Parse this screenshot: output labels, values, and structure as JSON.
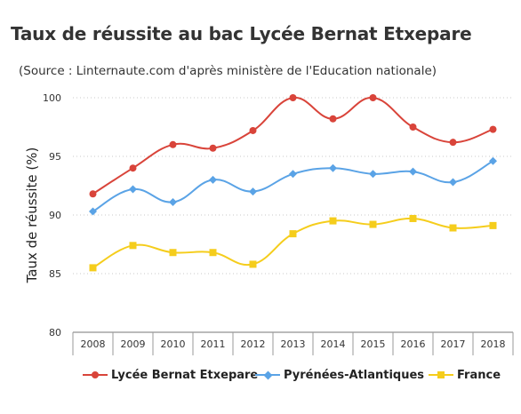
{
  "header": {
    "title": "Taux de réussite au bac Lycée Bernat Etxepare",
    "subtitle": "(Source : Linternaute.com d'après ministère de l'Education nationale)"
  },
  "chart_data": {
    "type": "line",
    "title": "Taux de réussite au bac Lycée Bernat Etxepare",
    "subtitle": "(Source : Linternaute.com d'après ministère de l'Education nationale)",
    "xlabel": "",
    "ylabel": "Taux de réussite (%)",
    "categories": [
      "2008",
      "2009",
      "2010",
      "2011",
      "2012",
      "2013",
      "2014",
      "2015",
      "2016",
      "2017",
      "2018"
    ],
    "ylim": [
      80,
      100
    ],
    "yticks": [
      80,
      85,
      90,
      95,
      100
    ],
    "grid": "horizontal dotted",
    "legend_position": "bottom",
    "series": [
      {
        "name": "Lycée Bernat Etxepare",
        "color": "#d9443a",
        "marker": "circle",
        "values": [
          91.8,
          94.0,
          96.0,
          95.7,
          97.2,
          100,
          98.2,
          100,
          97.5,
          96.2,
          97.3
        ]
      },
      {
        "name": "Pyrénées-Atlantiques",
        "color": "#5aa3e6",
        "marker": "diamond",
        "values": [
          90.3,
          92.2,
          91.1,
          93.0,
          92.0,
          93.5,
          94.0,
          93.5,
          93.7,
          92.8,
          94.6
        ]
      },
      {
        "name": "France",
        "color": "#f5cd1c",
        "marker": "square",
        "values": [
          85.5,
          87.4,
          86.8,
          86.8,
          85.8,
          88.4,
          89.5,
          89.2,
          89.7,
          88.9,
          89.1
        ]
      }
    ]
  }
}
